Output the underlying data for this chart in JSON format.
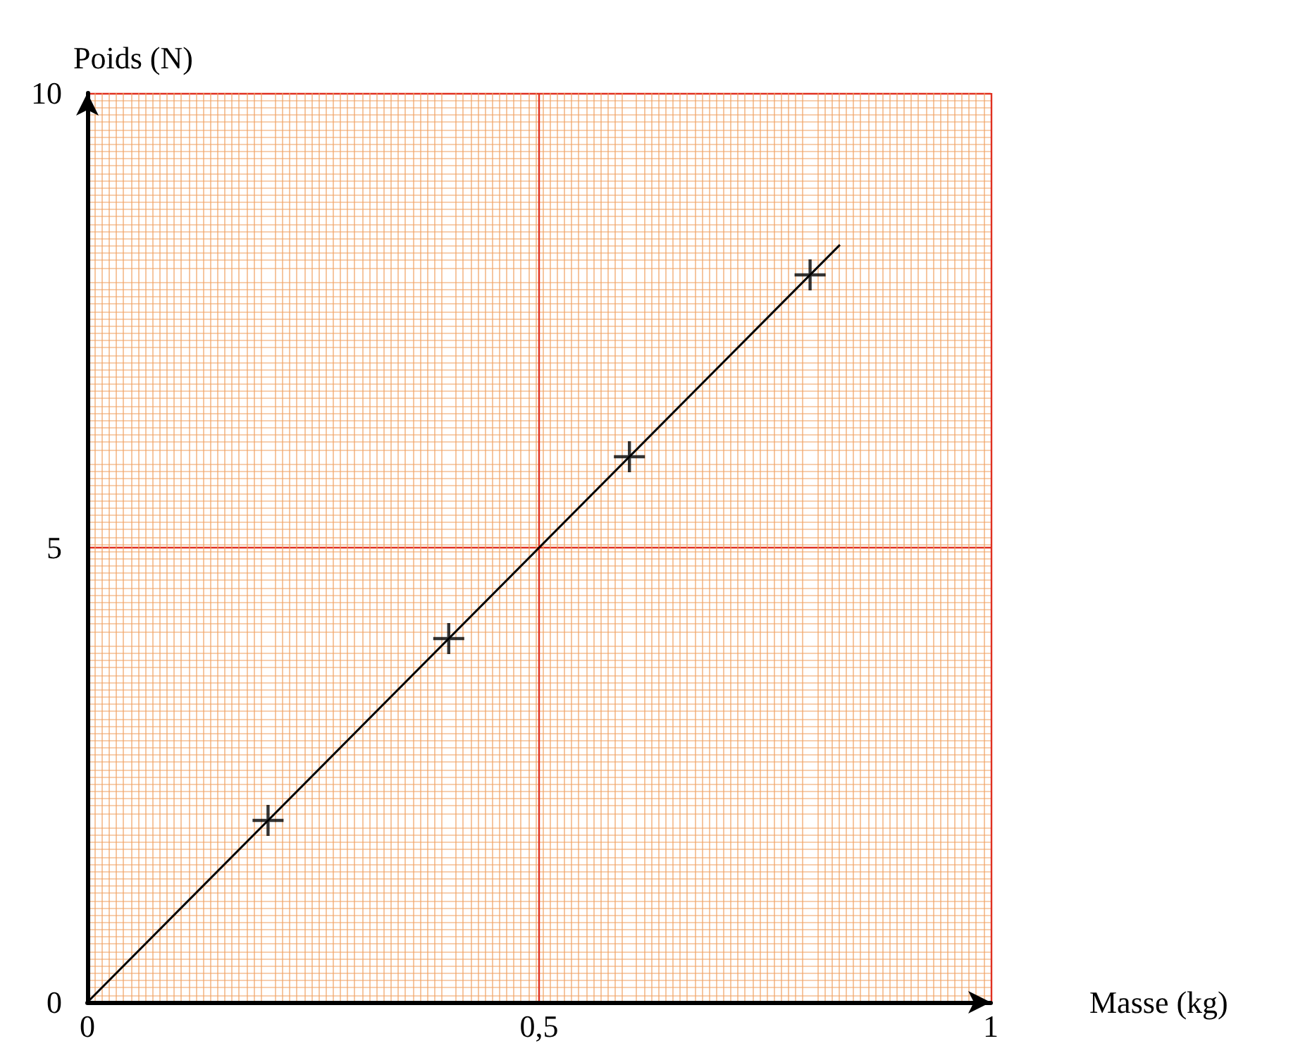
{
  "chart_data": {
    "type": "scatter",
    "xlabel": "Masse (kg)",
    "ylabel": "Poids (N)",
    "x": [
      0.2,
      0.4,
      0.6,
      0.8
    ],
    "series": [
      {
        "type": "scatter",
        "color": "#000000",
        "values": [
          2,
          4,
          6,
          8
        ],
        "marker": "cross"
      },
      {
        "type": "line",
        "color": "#000000",
        "x": [
          0,
          0.833
        ],
        "values": [
          0,
          8.33
        ],
        "line_style": "solid"
      }
    ],
    "xlim": [
      0,
      1
    ],
    "ylim": [
      0,
      10
    ],
    "xticks": [
      0,
      {
        "value": 0.5,
        "label": "0,5"
      },
      1
    ],
    "yticks": [
      0,
      5,
      10
    ],
    "grid": true
  }
}
